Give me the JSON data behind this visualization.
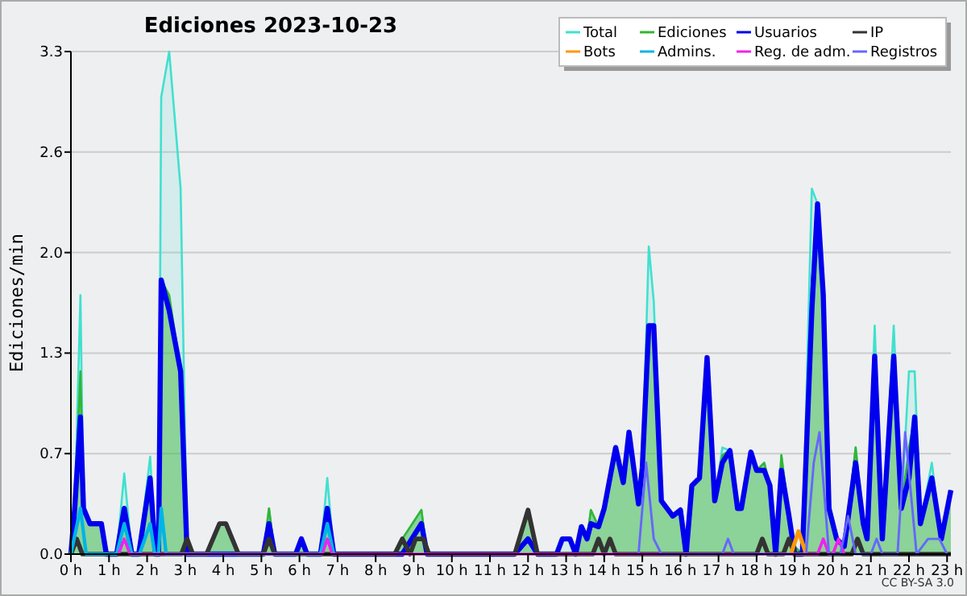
{
  "chart_data": {
    "type": "line",
    "title": "Ediciones  2023-10-23",
    "ylabel": "Ediciones/min",
    "annotations": [
      "CC BY-SA 3.0"
    ],
    "xlim": [
      0,
      23.1
    ],
    "xticks": [
      {
        "value": 0,
        "label": "0 h"
      },
      {
        "value": 1,
        "label": "1 h"
      },
      {
        "value": 2,
        "label": "2 h"
      },
      {
        "value": 3,
        "label": "3 h"
      },
      {
        "value": 4,
        "label": "4 h"
      },
      {
        "value": 5,
        "label": "5 h"
      },
      {
        "value": 6,
        "label": "6 h"
      },
      {
        "value": 7,
        "label": "7 h"
      },
      {
        "value": 8,
        "label": "8 h"
      },
      {
        "value": 9,
        "label": "9 h"
      },
      {
        "value": 10,
        "label": "10 h"
      },
      {
        "value": 11,
        "label": "11 h"
      },
      {
        "value": 12,
        "label": "12 h"
      },
      {
        "value": 13,
        "label": "13 h"
      },
      {
        "value": 14,
        "label": "14 h"
      },
      {
        "value": 15,
        "label": "15 h"
      },
      {
        "value": 16,
        "label": "16 h"
      },
      {
        "value": 17,
        "label": "17 h"
      },
      {
        "value": 18,
        "label": "18 h"
      },
      {
        "value": 19,
        "label": "19 h"
      },
      {
        "value": 20,
        "label": "20 h"
      },
      {
        "value": 21,
        "label": "21 h"
      },
      {
        "value": 22,
        "label": "22 h"
      },
      {
        "value": 23,
        "label": "23 h"
      }
    ],
    "ylim": [
      0,
      3.3
    ],
    "yticks": [
      {
        "value": 0,
        "label": "0.0"
      },
      {
        "value": 0.66,
        "label": "0.7"
      },
      {
        "value": 1.32,
        "label": "1.3"
      },
      {
        "value": 1.98,
        "label": "2.0"
      },
      {
        "value": 2.64,
        "label": "2.6"
      },
      3.3
    ],
    "grid": "y",
    "legend": "top right",
    "marker": "none",
    "line_style": "solid",
    "x": [
      0,
      0.1,
      0.25,
      0.33,
      0.5,
      0.8,
      0.93,
      1.2,
      1.4,
      1.6,
      1.78,
      2.08,
      2.22,
      2.3,
      2.37,
      2.58,
      2.88,
      3.05,
      3.56,
      3.9,
      4.07,
      4.4,
      5.05,
      5.2,
      5.35,
      5.9,
      6.05,
      6.2,
      6.55,
      6.73,
      6.9,
      8.5,
      8.7,
      9.2,
      9.35,
      11.65,
      12.0,
      12.25,
      12.75,
      12.9,
      13.1,
      13.25,
      13.4,
      13.55,
      13.65,
      13.85,
      14.0,
      14.3,
      14.5,
      14.65,
      14.9,
      15.0,
      15.17,
      15.3,
      15.5,
      15.8,
      16.0,
      16.15,
      16.3,
      16.5,
      16.7,
      16.9,
      17.1,
      17.3,
      17.5,
      17.6,
      17.85,
      18.0,
      18.2,
      18.35,
      18.5,
      18.65,
      18.85,
      19.0,
      19.2,
      19.45,
      19.6,
      19.75,
      19.9,
      20.1,
      20.3,
      20.6,
      20.8,
      20.9,
      21.1,
      21.3,
      21.6,
      21.8,
      22.0,
      22.15,
      22.3,
      22.6,
      22.85,
      23.1
    ],
    "series": [
      {
        "name": "Total",
        "type": "area",
        "color": "#40e0d0",
        "values": [
          0,
          0.3,
          1.7,
          0.3,
          0.2,
          0.2,
          0,
          0,
          0.53,
          0,
          0,
          0.64,
          0,
          0,
          3.0,
          3.3,
          2.4,
          0,
          0,
          0.2,
          0.2,
          0,
          0,
          0.3,
          0,
          0,
          0.1,
          0,
          0,
          0.5,
          0,
          0,
          0.1,
          0.29,
          0,
          0,
          0.29,
          0,
          0,
          0.1,
          0.1,
          0,
          0.18,
          0.1,
          0.29,
          0.18,
          0.3,
          0.7,
          0.47,
          0.8,
          0.33,
          0.57,
          2.02,
          1.66,
          0.35,
          0.25,
          0.29,
          0,
          0.45,
          0.5,
          1.29,
          0.35,
          0.7,
          0.68,
          0.3,
          0.3,
          0.67,
          0.55,
          0.6,
          0.45,
          0,
          0.65,
          0.25,
          0.05,
          0,
          2.4,
          2.3,
          1.7,
          0.3,
          0.1,
          0.05,
          0.7,
          0.2,
          0.1,
          1.5,
          0.1,
          1.5,
          0.3,
          1.2,
          1.2,
          0.2,
          0.6,
          0.1,
          0.42
        ]
      },
      {
        "name": "Ediciones",
        "type": "area",
        "color": "#33b533",
        "values": [
          0,
          0.3,
          1.2,
          0.3,
          0.2,
          0.2,
          0,
          0,
          0.3,
          0,
          0,
          0.5,
          0,
          0,
          1.8,
          1.7,
          1.2,
          0,
          0,
          0.2,
          0.2,
          0,
          0,
          0.3,
          0,
          0,
          0.1,
          0,
          0,
          0.3,
          0,
          0,
          0.1,
          0.29,
          0,
          0,
          0.29,
          0,
          0,
          0,
          0,
          0,
          0.18,
          0.1,
          0.29,
          0.18,
          0.3,
          0.7,
          0.47,
          0.8,
          0.33,
          0.57,
          1.5,
          1.5,
          0.35,
          0.25,
          0.29,
          0,
          0.45,
          0.5,
          1.29,
          0.35,
          0.65,
          0.68,
          0.3,
          0.3,
          0.67,
          0.55,
          0.6,
          0.45,
          0,
          0.65,
          0.25,
          0.05,
          0,
          1.8,
          2.2,
          1.7,
          0.3,
          0.1,
          0.05,
          0.7,
          0.2,
          0.1,
          1.3,
          0.1,
          1.3,
          0.3,
          0.7,
          0.9,
          0.2,
          0.5,
          0.1,
          0.42
        ]
      },
      {
        "name": "Usuarios",
        "color": "#0000ee",
        "values": [
          0,
          0.3,
          0.9,
          0.3,
          0.2,
          0.2,
          0,
          0,
          0.3,
          0,
          0,
          0.5,
          0,
          0,
          1.8,
          1.6,
          1.2,
          0,
          0,
          0,
          0,
          0,
          0,
          0.2,
          0,
          0,
          0.1,
          0,
          0,
          0.3,
          0,
          0,
          0,
          0.2,
          0,
          0,
          0.1,
          0,
          0,
          0.1,
          0.1,
          0,
          0.18,
          0.1,
          0.2,
          0.18,
          0.3,
          0.7,
          0.47,
          0.8,
          0.33,
          0.57,
          1.5,
          1.5,
          0.35,
          0.25,
          0.29,
          0,
          0.45,
          0.5,
          1.29,
          0.35,
          0.6,
          0.68,
          0.3,
          0.3,
          0.67,
          0.55,
          0.55,
          0.45,
          0,
          0.55,
          0.25,
          0,
          0,
          1.6,
          2.3,
          1.7,
          0.3,
          0.1,
          0.05,
          0.6,
          0.2,
          0.1,
          1.3,
          0.1,
          1.3,
          0.3,
          0.5,
          0.9,
          0.2,
          0.5,
          0.1,
          0.42
        ]
      },
      {
        "name": "IP",
        "color": "#333333",
        "x": [
          0,
          0.15,
          0.3,
          2.9,
          3.05,
          3.2,
          3.56,
          3.9,
          4.07,
          4.4,
          5.05,
          5.2,
          5.35,
          8.5,
          8.7,
          8.9,
          9.05,
          9.25,
          9.4,
          11.65,
          12.0,
          12.25,
          13.7,
          13.85,
          14.0,
          14.15,
          14.3,
          18.0,
          18.15,
          18.3,
          18.7,
          18.85,
          19.0,
          20.5,
          20.65,
          20.8,
          23.1
        ],
        "values": [
          0,
          0.1,
          0,
          0,
          0.1,
          0,
          0,
          0.2,
          0.2,
          0,
          0,
          0.1,
          0,
          0,
          0.1,
          0,
          0.1,
          0.1,
          0,
          0,
          0.29,
          0,
          0,
          0.1,
          0,
          0.1,
          0,
          0,
          0.1,
          0,
          0,
          0.1,
          0,
          0,
          0.1,
          0,
          0
        ]
      },
      {
        "name": "Bots",
        "color": "#ff9900",
        "x": [
          18.9,
          19.1,
          19.3
        ],
        "values": [
          0,
          0.15,
          0
        ]
      },
      {
        "name": "Admins.",
        "color": "#00b4e6",
        "x": [
          0,
          0.25,
          0.4,
          1.2,
          1.4,
          1.6,
          1.8,
          2.08,
          2.2,
          2.3,
          2.37,
          2.5,
          6.55,
          6.73,
          6.9
        ],
        "values": [
          0,
          0.3,
          0,
          0,
          0.2,
          0,
          0,
          0.2,
          0,
          0,
          0.3,
          0,
          0,
          0.2,
          0
        ]
      },
      {
        "name": "Reg. de adm.",
        "color": "#ee22ee",
        "x": [
          1.25,
          1.4,
          1.55,
          6.6,
          6.73,
          6.86,
          19.6,
          19.75,
          19.9,
          20.0,
          20.15,
          20.3
        ],
        "values": [
          0,
          0.1,
          0,
          0,
          0.1,
          0,
          0,
          0.1,
          0,
          0,
          0.1,
          0
        ]
      },
      {
        "name": "Registros",
        "color": "#6666ff",
        "x": [
          14.9,
          15.1,
          15.3,
          15.5,
          17.1,
          17.25,
          17.4,
          19.3,
          19.5,
          19.65,
          19.9,
          20.2,
          20.4,
          20.6,
          21.0,
          21.15,
          21.3,
          21.7,
          21.9,
          22.2,
          22.5,
          22.8,
          23.0
        ],
        "values": [
          0,
          0.6,
          0.1,
          0,
          0,
          0.1,
          0,
          0,
          0.6,
          0.8,
          0,
          0,
          0.25,
          0,
          0,
          0.1,
          0,
          0,
          0.8,
          0,
          0.1,
          0.1,
          0
        ]
      }
    ]
  }
}
